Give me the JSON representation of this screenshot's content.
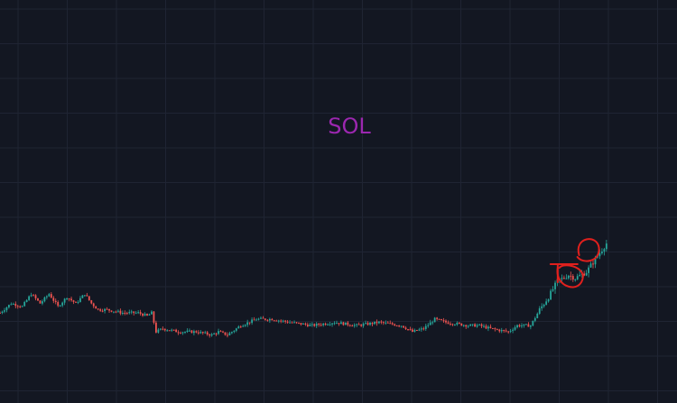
{
  "chart_data": {
    "type": "candlestick",
    "title": "SOL",
    "xlabel": "",
    "ylabel": "",
    "grid": true,
    "background_color": "#131722",
    "grid_color": "#1f2433",
    "up_color": "#26a69a",
    "down_color": "#ef5350",
    "title_color": "#9c27b0",
    "annotation_color": "#e0201d",
    "ylim": [
      0,
      100
    ],
    "close_path": [
      [
        0,
        18
      ],
      [
        5,
        21
      ],
      [
        10,
        20
      ],
      [
        14,
        24
      ],
      [
        18,
        21
      ],
      [
        22,
        24
      ],
      [
        26,
        20
      ],
      [
        30,
        23
      ],
      [
        34,
        21
      ],
      [
        38,
        24
      ],
      [
        41,
        21
      ],
      [
        44,
        19
      ],
      [
        48,
        19
      ],
      [
        55,
        18
      ],
      [
        62,
        18
      ],
      [
        66,
        17
      ],
      [
        68,
        18
      ],
      [
        70,
        12
      ],
      [
        73,
        13
      ],
      [
        80,
        12
      ],
      [
        88,
        12
      ],
      [
        95,
        11
      ],
      [
        98,
        12
      ],
      [
        102,
        11
      ],
      [
        108,
        14
      ],
      [
        115,
        16
      ],
      [
        122,
        16
      ],
      [
        130,
        15
      ],
      [
        140,
        14
      ],
      [
        150,
        15
      ],
      [
        160,
        14
      ],
      [
        170,
        15
      ],
      [
        180,
        14
      ],
      [
        185,
        12
      ],
      [
        190,
        13
      ],
      [
        195,
        16
      ],
      [
        200,
        15
      ],
      [
        210,
        14
      ],
      [
        215,
        14
      ],
      [
        220,
        13
      ],
      [
        228,
        12
      ],
      [
        232,
        14
      ],
      [
        238,
        14
      ],
      [
        242,
        19
      ],
      [
        246,
        23
      ],
      [
        250,
        28
      ],
      [
        255,
        30
      ],
      [
        258,
        29
      ],
      [
        263,
        31
      ],
      [
        268,
        36
      ],
      [
        272,
        40
      ]
    ],
    "annotations": [
      {
        "type": "circle",
        "at_x": 255,
        "at_y": 30
      },
      {
        "type": "circle",
        "at_x": 263,
        "at_y": 38
      }
    ]
  }
}
